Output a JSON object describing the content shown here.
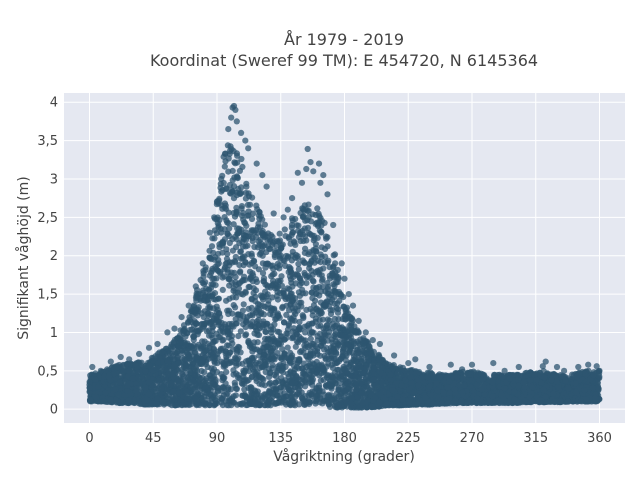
{
  "chart_data": {
    "type": "scatter",
    "title_lines": [
      "År 1979 - 2019",
      "Koordinat (Sweref 99 TM): E 454720, N 6145364"
    ],
    "xlabel": "Vågriktning (grader)",
    "ylabel": "Signifikant våghöjd (m)",
    "xlim": [
      -18,
      378
    ],
    "ylim": [
      -0.18,
      4.12
    ],
    "x_ticks": [
      0,
      45,
      90,
      135,
      180,
      225,
      270,
      315,
      360
    ],
    "x_tick_labels": [
      "0",
      "45",
      "90",
      "135",
      "180",
      "225",
      "270",
      "315",
      "360"
    ],
    "y_ticks": [
      0,
      0.5,
      1,
      1.5,
      2,
      2.5,
      3,
      3.5,
      4
    ],
    "y_tick_labels": [
      "0",
      "0,5",
      "1",
      "1,5",
      "2",
      "2,5",
      "3",
      "3,5",
      "4"
    ],
    "grid": true,
    "marker_color": "#2e5670",
    "background": "#e5e8f1",
    "envelope": {
      "x": [
        0,
        10,
        20,
        30,
        40,
        50,
        60,
        70,
        75,
        80,
        85,
        90,
        95,
        100,
        105,
        110,
        115,
        120,
        125,
        130,
        135,
        140,
        145,
        150,
        155,
        160,
        165,
        170,
        175,
        180,
        190,
        200,
        210,
        220,
        230,
        240,
        250,
        260,
        270,
        280,
        290,
        300,
        310,
        320,
        330,
        340,
        350,
        360
      ],
      "y_min": [
        0.1,
        0.1,
        0.08,
        0.08,
        0.06,
        0.06,
        0.05,
        0.05,
        0.05,
        0.05,
        0.05,
        0.05,
        0.05,
        0.05,
        0.05,
        0.05,
        0.05,
        0.05,
        0.05,
        0.05,
        0.05,
        0.05,
        0.05,
        0.05,
        0.05,
        0.05,
        0.05,
        0.02,
        0.02,
        0.02,
        0.02,
        0.02,
        0.05,
        0.05,
        0.06,
        0.06,
        0.07,
        0.08,
        0.08,
        0.08,
        0.08,
        0.08,
        0.09,
        0.09,
        0.09,
        0.1,
        0.1,
        0.1
      ],
      "y_max": [
        0.45,
        0.5,
        0.58,
        0.62,
        0.62,
        0.75,
        0.9,
        1.2,
        1.5,
        1.8,
        2.1,
        2.7,
        3.35,
        3.55,
        3.35,
        3.15,
        2.9,
        2.6,
        2.35,
        2.3,
        2.3,
        2.4,
        2.55,
        2.7,
        2.75,
        2.65,
        2.5,
        2.25,
        1.9,
        1.4,
        1.0,
        0.8,
        0.6,
        0.55,
        0.5,
        0.48,
        0.45,
        0.48,
        0.5,
        0.45,
        0.45,
        0.45,
        0.48,
        0.5,
        0.45,
        0.45,
        0.5,
        0.5
      ]
    },
    "outlier_points": [
      {
        "x": 101,
        "y": 3.93
      },
      {
        "x": 102,
        "y": 3.95
      },
      {
        "x": 103,
        "y": 3.9
      },
      {
        "x": 100,
        "y": 3.8
      },
      {
        "x": 104,
        "y": 3.75
      },
      {
        "x": 98,
        "y": 3.65
      },
      {
        "x": 107,
        "y": 3.6
      },
      {
        "x": 110,
        "y": 3.5
      },
      {
        "x": 112,
        "y": 3.4
      },
      {
        "x": 118,
        "y": 3.2
      },
      {
        "x": 122,
        "y": 3.05
      },
      {
        "x": 125,
        "y": 2.9
      },
      {
        "x": 154,
        "y": 3.39
      },
      {
        "x": 156,
        "y": 3.22
      },
      {
        "x": 162,
        "y": 3.2
      },
      {
        "x": 153,
        "y": 3.13
      },
      {
        "x": 158,
        "y": 3.1
      },
      {
        "x": 165,
        "y": 3.05
      },
      {
        "x": 147,
        "y": 3.08
      },
      {
        "x": 150,
        "y": 2.95
      },
      {
        "x": 163,
        "y": 2.95
      },
      {
        "x": 143,
        "y": 2.75
      },
      {
        "x": 140,
        "y": 2.6
      },
      {
        "x": 130,
        "y": 2.55
      },
      {
        "x": 137,
        "y": 2.5
      },
      {
        "x": 168,
        "y": 2.8
      },
      {
        "x": 172,
        "y": 2.4
      },
      {
        "x": 178,
        "y": 1.9
      },
      {
        "x": 180,
        "y": 1.7
      },
      {
        "x": 183,
        "y": 1.5
      },
      {
        "x": 186,
        "y": 1.35
      },
      {
        "x": 190,
        "y": 1.15
      },
      {
        "x": 195,
        "y": 1.0
      },
      {
        "x": 200,
        "y": 0.9
      },
      {
        "x": 205,
        "y": 0.85
      },
      {
        "x": 215,
        "y": 0.7
      },
      {
        "x": 225,
        "y": 0.6
      },
      {
        "x": 230,
        "y": 0.65
      },
      {
        "x": 240,
        "y": 0.55
      },
      {
        "x": 255,
        "y": 0.58
      },
      {
        "x": 263,
        "y": 0.52
      },
      {
        "x": 270,
        "y": 0.58
      },
      {
        "x": 285,
        "y": 0.6
      },
      {
        "x": 293,
        "y": 0.5
      },
      {
        "x": 303,
        "y": 0.55
      },
      {
        "x": 320,
        "y": 0.56
      },
      {
        "x": 322,
        "y": 0.62
      },
      {
        "x": 330,
        "y": 0.55
      },
      {
        "x": 335,
        "y": 0.5
      },
      {
        "x": 345,
        "y": 0.55
      },
      {
        "x": 352,
        "y": 0.58
      },
      {
        "x": 358,
        "y": 0.56
      },
      {
        "x": 360,
        "y": 0.5
      },
      {
        "x": 2,
        "y": 0.55
      },
      {
        "x": 8,
        "y": 0.5
      },
      {
        "x": 15,
        "y": 0.62
      },
      {
        "x": 22,
        "y": 0.68
      },
      {
        "x": 28,
        "y": 0.65
      },
      {
        "x": 35,
        "y": 0.72
      },
      {
        "x": 42,
        "y": 0.8
      },
      {
        "x": 48,
        "y": 0.85
      },
      {
        "x": 55,
        "y": 1.0
      },
      {
        "x": 60,
        "y": 1.05
      },
      {
        "x": 65,
        "y": 1.2
      },
      {
        "x": 70,
        "y": 1.35
      },
      {
        "x": 75,
        "y": 1.6
      },
      {
        "x": 80,
        "y": 1.9
      },
      {
        "x": 85,
        "y": 2.3
      },
      {
        "x": 88,
        "y": 2.5
      },
      {
        "x": 90,
        "y": 2.7
      },
      {
        "x": 93,
        "y": 3.0
      }
    ]
  }
}
